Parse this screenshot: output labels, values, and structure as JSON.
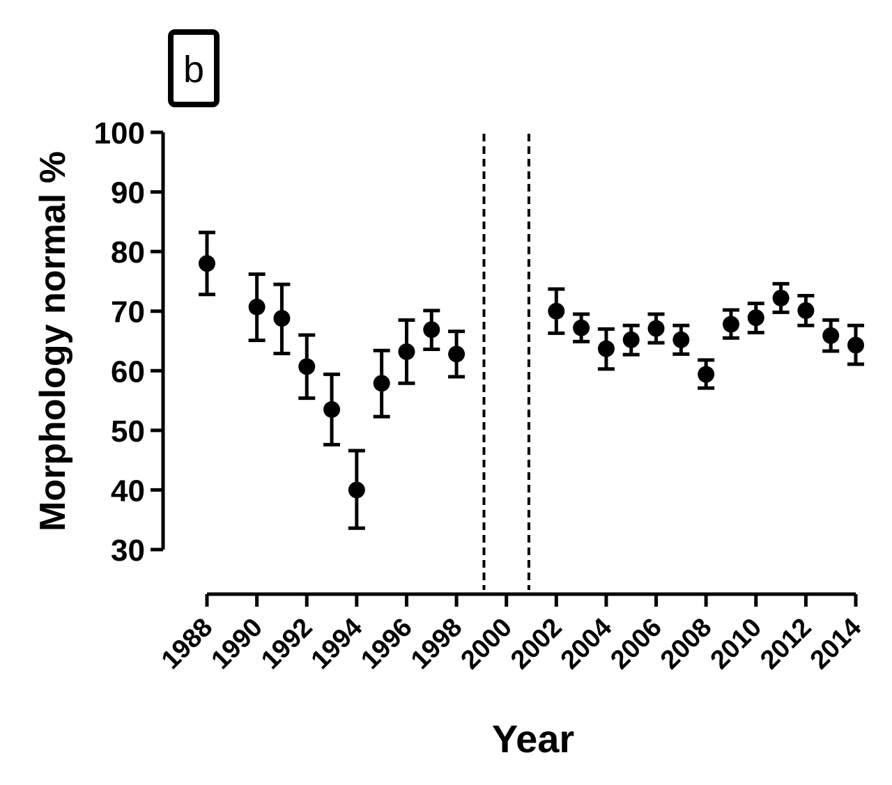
{
  "chart_data": {
    "type": "scatter",
    "panel_label": "b",
    "xlabel": "Year",
    "ylabel": "Morphology normal %",
    "xlim": [
      1988,
      2014
    ],
    "ylim": [
      30,
      100
    ],
    "y_ticks": [
      30,
      40,
      50,
      60,
      70,
      80,
      90,
      100
    ],
    "x_ticks": [
      1988,
      1990,
      1992,
      1994,
      1996,
      1998,
      2000,
      2002,
      2004,
      2006,
      2008,
      2010,
      2012,
      2014
    ],
    "x_tick_labels": [
      "1988",
      "1990",
      "1992",
      "1994",
      "1996",
      "1998",
      "2000",
      "2002",
      "2004",
      "2006",
      "2008",
      "2010",
      "2012",
      "2014"
    ],
    "y_tick_labels": [
      "30",
      "40",
      "50",
      "60",
      "70",
      "80",
      "90",
      "100"
    ],
    "vertical_reference_lines": [
      1999.1,
      2000.9
    ],
    "grid": false,
    "legend": false,
    "series": [
      {
        "points": [
          {
            "x": 1988,
            "y": 78.0,
            "err_low": 72.8,
            "err_high": 83.2
          },
          {
            "x": 1990,
            "y": 70.7,
            "err_low": 65.1,
            "err_high": 76.2
          },
          {
            "x": 1991,
            "y": 68.8,
            "err_low": 62.9,
            "err_high": 74.5
          },
          {
            "x": 1992,
            "y": 60.7,
            "err_low": 55.4,
            "err_high": 66.0
          },
          {
            "x": 1993,
            "y": 53.5,
            "err_low": 47.6,
            "err_high": 59.4
          },
          {
            "x": 1994,
            "y": 40.0,
            "err_low": 33.6,
            "err_high": 46.6
          },
          {
            "x": 1995,
            "y": 57.9,
            "err_low": 52.3,
            "err_high": 63.4
          },
          {
            "x": 1996,
            "y": 63.2,
            "err_low": 57.9,
            "err_high": 68.5
          },
          {
            "x": 1997,
            "y": 66.9,
            "err_low": 63.6,
            "err_high": 70.1
          },
          {
            "x": 1998,
            "y": 62.8,
            "err_low": 59.0,
            "err_high": 66.6
          },
          {
            "x": 2002,
            "y": 70.0,
            "err_low": 66.3,
            "err_high": 73.7
          },
          {
            "x": 2003,
            "y": 67.2,
            "err_low": 64.9,
            "err_high": 69.5
          },
          {
            "x": 2004,
            "y": 63.7,
            "err_low": 60.3,
            "err_high": 67.0
          },
          {
            "x": 2005,
            "y": 65.2,
            "err_low": 62.7,
            "err_high": 67.6
          },
          {
            "x": 2006,
            "y": 67.1,
            "err_low": 64.7,
            "err_high": 69.5
          },
          {
            "x": 2007,
            "y": 65.2,
            "err_low": 62.8,
            "err_high": 67.6
          },
          {
            "x": 2008,
            "y": 59.4,
            "err_low": 57.1,
            "err_high": 61.8
          },
          {
            "x": 2009,
            "y": 67.8,
            "err_low": 65.5,
            "err_high": 70.2
          },
          {
            "x": 2010,
            "y": 68.9,
            "err_low": 66.4,
            "err_high": 71.3
          },
          {
            "x": 2011,
            "y": 72.2,
            "err_low": 69.8,
            "err_high": 74.6
          },
          {
            "x": 2012,
            "y": 70.1,
            "err_low": 67.6,
            "err_high": 72.6
          },
          {
            "x": 2013,
            "y": 65.9,
            "err_low": 63.3,
            "err_high": 68.5
          },
          {
            "x": 2014,
            "y": 64.3,
            "err_low": 61.1,
            "err_high": 67.6
          }
        ]
      }
    ]
  }
}
